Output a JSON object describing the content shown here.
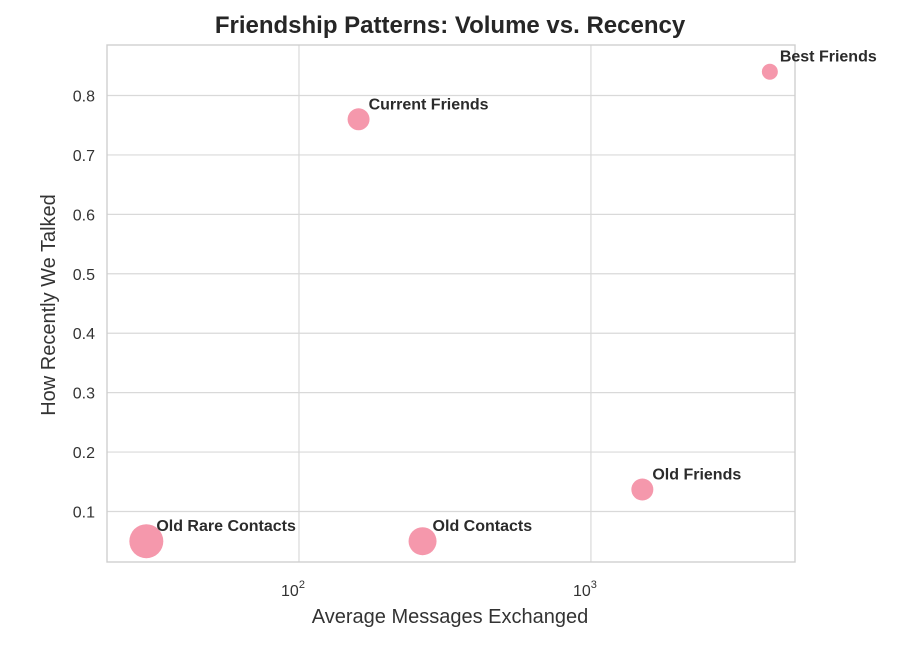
{
  "chart_data": {
    "type": "scatter",
    "title": "Friendship Patterns: Volume vs. Recency",
    "xlabel": "Average Messages Exchanged",
    "ylabel": "How Recently We Talked",
    "xscale": "log",
    "xlim": [
      22,
      5000
    ],
    "ylim": [
      0.015,
      0.885
    ],
    "x_ticks": [
      {
        "value": 100,
        "base": "10",
        "exponent": "2"
      },
      {
        "value": 1000,
        "base": "10",
        "exponent": "3"
      }
    ],
    "y_ticks": [
      "0.1",
      "0.2",
      "0.3",
      "0.4",
      "0.5",
      "0.6",
      "0.7",
      "0.8"
    ],
    "grid": true,
    "marker_color": "#f48aa0",
    "points": [
      {
        "label": "Best Friends",
        "x": 4100,
        "y": 0.84,
        "size": 1
      },
      {
        "label": "Current Friends",
        "x": 160,
        "y": 0.76,
        "size": 2
      },
      {
        "label": "Old Friends",
        "x": 1500,
        "y": 0.137,
        "size": 2
      },
      {
        "label": "Old Contacts",
        "x": 265,
        "y": 0.05,
        "size": 3
      },
      {
        "label": "Old Rare Contacts",
        "x": 30,
        "y": 0.05,
        "size": 4
      }
    ]
  }
}
